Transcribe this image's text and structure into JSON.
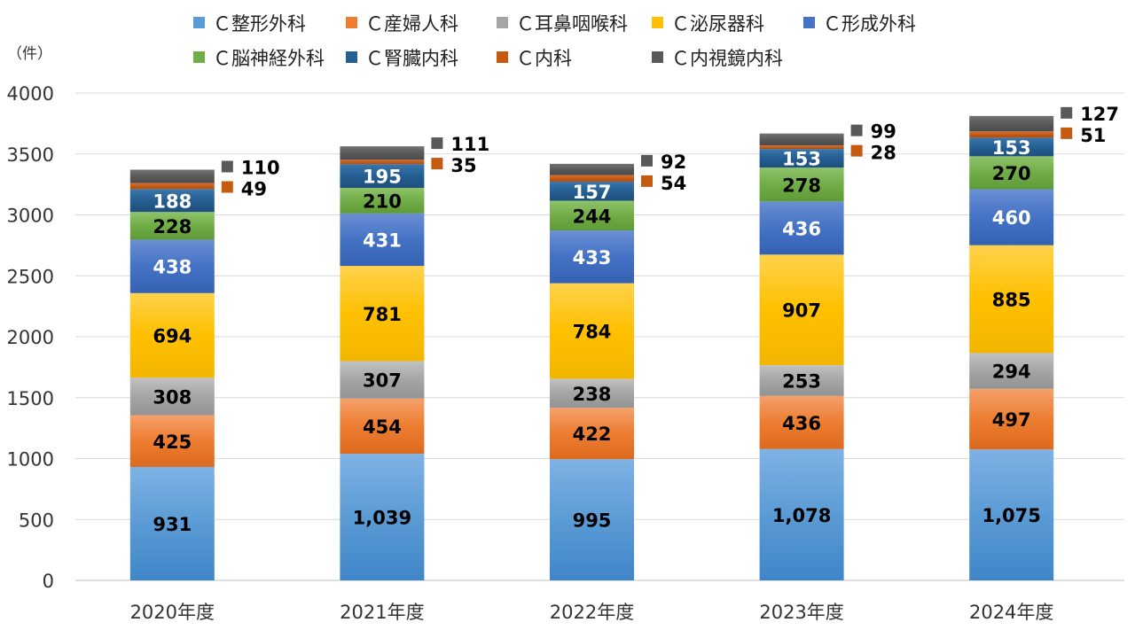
{
  "chart_data": {
    "type": "stacked-bar",
    "unit_label": "（件）",
    "categories": [
      "2020年度",
      "2021年度",
      "2022年度",
      "2023年度",
      "2024年度"
    ],
    "ylim": [
      0,
      4000
    ],
    "yticks": [
      "0",
      "500",
      "1000",
      "1500",
      "2000",
      "2500",
      "3000",
      "3500",
      "4000"
    ],
    "grid": true,
    "legend": "top",
    "series": [
      {
        "name": "Ｃ整形外科",
        "color": "#5b9bd5",
        "color_light": "#7fb2e5",
        "color_dark": "#3f86c8",
        "values": [
          931,
          1039,
          995,
          1078,
          1075
        ],
        "labels": [
          "931",
          "1,039",
          "995",
          "1,078",
          "1,075"
        ],
        "label_color": "#000000"
      },
      {
        "name": "Ｃ産婦人科",
        "color": "#ed7d31",
        "color_light": "#f4a06a",
        "color_dark": "#dc6a1e",
        "values": [
          425,
          454,
          422,
          436,
          497
        ],
        "labels": [
          "425",
          "454",
          "422",
          "436",
          "497"
        ],
        "label_color": "#000000"
      },
      {
        "name": "Ｃ耳鼻咽喉科",
        "color": "#a5a5a5",
        "color_light": "#c2c2c2",
        "color_dark": "#939393",
        "values": [
          308,
          307,
          238,
          253,
          294
        ],
        "labels": [
          "308",
          "307",
          "238",
          "253",
          "294"
        ],
        "label_color": "#000000"
      },
      {
        "name": "Ｃ泌尿器科",
        "color": "#ffc000",
        "color_light": "#ffd24d",
        "color_dark": "#f2b600",
        "values": [
          694,
          781,
          784,
          907,
          885
        ],
        "labels": [
          "694",
          "781",
          "784",
          "907",
          "885"
        ],
        "label_color": "#000000"
      },
      {
        "name": "Ｃ形成外科",
        "color": "#4472c4",
        "color_light": "#6a8fd3",
        "color_dark": "#3561b3",
        "values": [
          438,
          431,
          433,
          436,
          460
        ],
        "labels": [
          "438",
          "431",
          "433",
          "436",
          "460"
        ],
        "label_color": "#ffffff"
      },
      {
        "name": "Ｃ脳神経外科",
        "color": "#70ad47",
        "color_light": "#8fc36b",
        "color_dark": "#5e9a37",
        "values": [
          228,
          210,
          244,
          278,
          270
        ],
        "labels": [
          "228",
          "210",
          "244",
          "278",
          "270"
        ],
        "label_color": "#000000"
      },
      {
        "name": "Ｃ腎臓内科",
        "color": "#255e91",
        "color_light": "#3a77ad",
        "color_dark": "#1d4f7c",
        "values": [
          188,
          195,
          157,
          153,
          153
        ],
        "labels": [
          "188",
          "195",
          "157",
          "153",
          "153"
        ],
        "label_color": "#ffffff"
      },
      {
        "name": "Ｃ内科",
        "color": "#c55a11",
        "color_light": "#d9743a",
        "color_dark": "#ad4c0c",
        "values": [
          49,
          35,
          54,
          28,
          51
        ],
        "labels": [
          "49",
          "35",
          "54",
          "28",
          "51"
        ],
        "label_color": "#000000"
      },
      {
        "name": "Ｃ内視鏡内科",
        "color": "#595959",
        "color_light": "#737373",
        "color_dark": "#4a4a4a",
        "values": [
          110,
          111,
          92,
          99,
          127
        ],
        "labels": [
          "110",
          "111",
          "92",
          "99",
          "127"
        ],
        "label_color": "#000000"
      }
    ]
  }
}
